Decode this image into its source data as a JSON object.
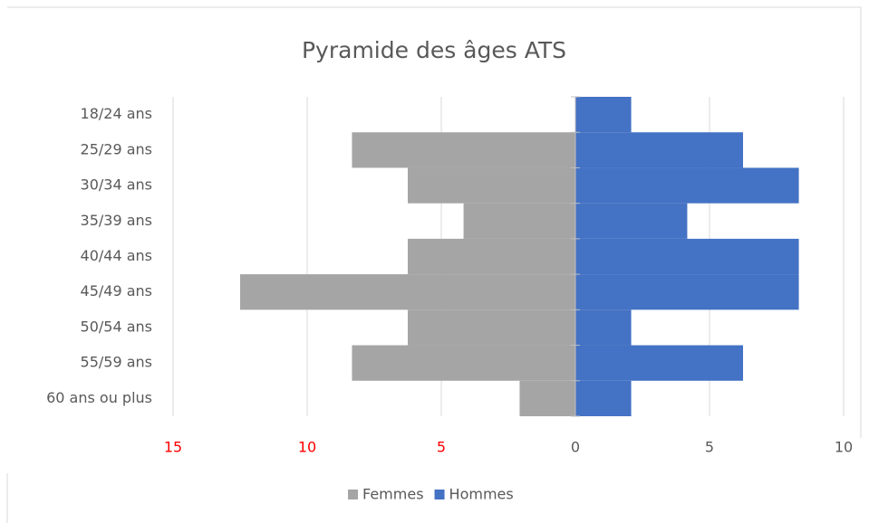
{
  "chart_data": {
    "type": "pyramid",
    "title": "Pyramide des âges ATS",
    "categories": [
      "18/24 ans",
      "25/29 ans",
      "30/34 ans",
      "35/39 ans",
      "40/44 ans",
      "45/49 ans",
      "50/54 ans",
      "55/59 ans",
      "60 ans ou plus"
    ],
    "series": [
      {
        "name": "Femmes",
        "color": "#a5a5a5",
        "values": [
          0,
          -8.33,
          -6.25,
          -4.17,
          -6.25,
          -12.5,
          -6.25,
          -8.33,
          -2.08
        ]
      },
      {
        "name": "Hommes",
        "color": "#4472c4",
        "values": [
          2.08,
          6.25,
          8.33,
          4.17,
          8.33,
          8.33,
          2.08,
          6.25,
          2.08
        ]
      }
    ],
    "xlim": [
      -15,
      10
    ],
    "xticks": [
      {
        "value": -15,
        "label": "15"
      },
      {
        "value": -10,
        "label": "10"
      },
      {
        "value": -5,
        "label": "5"
      },
      0,
      5,
      10
    ],
    "negative_tick_color": "#ff0000",
    "grid": true,
    "legend": "bottom"
  }
}
